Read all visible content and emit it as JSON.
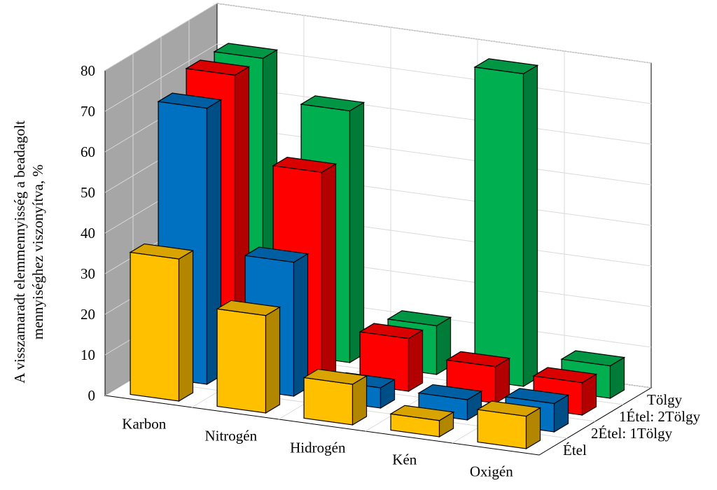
{
  "chart_data": {
    "type": "bar3d",
    "ylabel": [
      "A visszamaradt elemmennyisség a beadagolt",
      "mennyiséghez viszonyítva, %"
    ],
    "categories": [
      "Karbon",
      "Nitrogén",
      "Hidrogén",
      "Kén",
      "Oxigén"
    ],
    "series": [
      {
        "name": "Étel",
        "color": "#ffc000",
        "values": [
          35,
          24,
          10,
          4,
          8
        ]
      },
      {
        "name": "2Étel: 1Tölgy",
        "color": "#0070c0",
        "values": [
          68,
          33,
          5,
          5,
          7
        ]
      },
      {
        "name": "1Étel: 2Tölgy",
        "color": "#ff0000",
        "values": [
          72,
          51,
          13,
          9,
          8
        ]
      },
      {
        "name": "Tölgy",
        "color": "#00b050",
        "values": [
          72,
          62,
          12,
          77,
          8
        ]
      }
    ],
    "ylim": [
      0,
      80
    ],
    "yticks": [
      0,
      10,
      20,
      30,
      40,
      50,
      60,
      70,
      80
    ],
    "grid": true
  }
}
